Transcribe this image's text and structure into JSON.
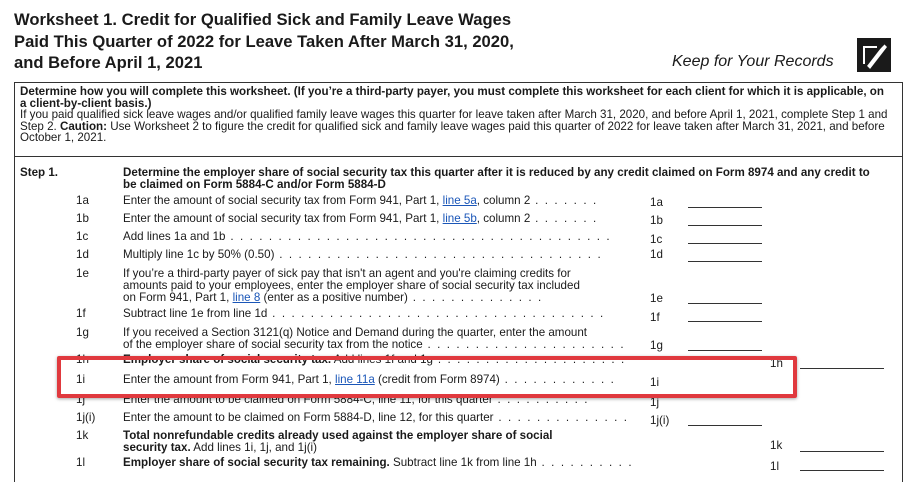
{
  "title_line1": "Worksheet 1. Credit for Qualified Sick and Family Leave Wages",
  "title_line2": "Paid This Quarter of 2022 for Leave Taken After March 31, 2020,",
  "title_line3": "and Before April 1, 2021",
  "keep_records": "Keep for Your Records",
  "intro_bold": "Determine how you will complete this worksheet. (If you’re a third-party payer, you must complete this worksheet for each client for which it is applicable, on a client-by-client basis.)",
  "intro_text": "If you paid qualified sick leave wages and/or qualified family leave wages this quarter for leave taken after March 31, 2020, and before April 1, 2021, complete Step 1 and Step 2.",
  "intro_caution_label": "Caution:",
  "intro_caution_text": "Use Worksheet 2 to figure the credit for qualified sick and family leave wages paid this quarter of 2022 for leave taken after March 31, 2021, and before October 1, 2021.",
  "step1_label": "Step 1.",
  "step1_heading": "Determine the employer share of social security tax this quarter after it is reduced by any credit claimed on Form 8974 and any credit to be claimed on Form 5884-C and/or Form 5884-D",
  "lines": {
    "l1a": {
      "num": "1a",
      "pre": "Enter the amount of social security tax from Form 941, Part 1,",
      "link": "line 5a",
      "post": ", column 2",
      "ref": "1a"
    },
    "l1b": {
      "num": "1b",
      "pre": "Enter the amount of social security tax from Form 941, Part 1,",
      "link": "line 5b",
      "post": ", column 2",
      "ref": "1b"
    },
    "l1c": {
      "num": "1c",
      "text": "Add lines 1a and 1b",
      "ref": "1c"
    },
    "l1d": {
      "num": "1d",
      "text": "Multiply line 1c by 50% (0.50)",
      "ref": "1d"
    },
    "l1e": {
      "num": "1e",
      "text1": "If you’re a third-party payer of sick pay that isn't an agent and you're claiming credits for",
      "text2": "amounts paid to your employees, enter the employer share of social security tax included",
      "pre3": "on Form 941, Part 1,",
      "link": "line 8",
      "post3": "(enter as a positive number)",
      "ref": "1e"
    },
    "l1f": {
      "num": "1f",
      "text": "Subtract line 1e from line 1d",
      "ref": "1f"
    },
    "l1g": {
      "num": "1g",
      "text1": "If you received a Section 3121(q) Notice and Demand during the quarter, enter the amount",
      "text2": "of the employer share of social security tax from the notice",
      "ref": "1g"
    },
    "l1h": {
      "num": "1h",
      "bold": "Employer share of social security tax.",
      "text": "Add lines 1f and 1g",
      "ref": "1h"
    },
    "l1i": {
      "num": "1i",
      "pre": "Enter the amount from Form 941, Part 1,",
      "link": "line 11a",
      "post": "(credit from Form 8974)",
      "ref": "1i"
    },
    "l1j": {
      "num": "1j",
      "text": "Enter the amount to be claimed on Form 5884-C, line 11, for this quarter",
      "ref": "1j"
    },
    "l1ji": {
      "num": "1j(i)",
      "text": "Enter the amount to be claimed on Form 5884-D, line 12, for this quarter",
      "ref": "1j(i)"
    },
    "l1k": {
      "num": "1k",
      "bold1": "Total nonrefundable credits already used against the employer share of social",
      "bold2": "security tax.",
      "text": "Add lines 1i, 1j, and 1j(i)",
      "ref": "1k"
    },
    "l1l": {
      "num": "1l",
      "bold": "Employer share of social security tax remaining.",
      "text": "Subtract line 1k from line 1h",
      "ref": "1l"
    }
  },
  "highlight_color": "#e0393e",
  "link_color": "#1a56b8",
  "icon": "pen-on-paper-icon"
}
